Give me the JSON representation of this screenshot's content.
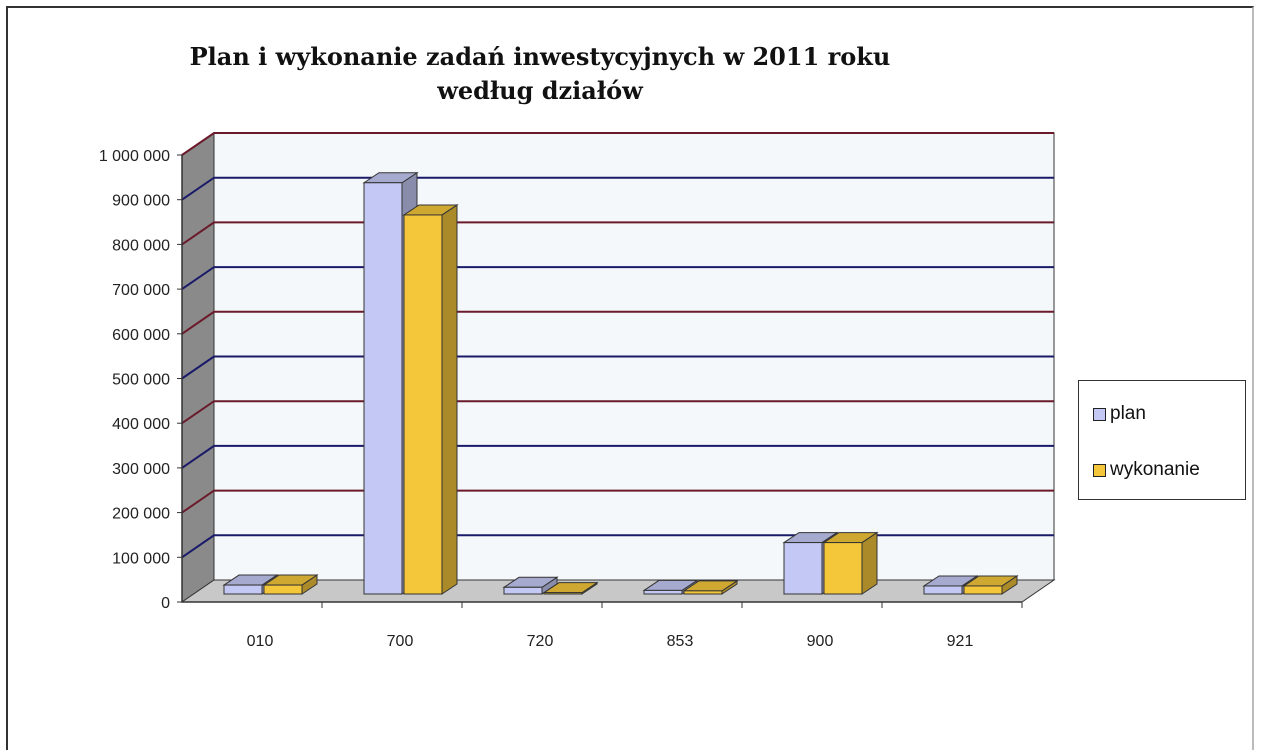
{
  "chart_data": {
    "type": "bar",
    "title": [
      "Plan i wykonanie zadań inwestycyjnych w 2011 roku",
      "według działów"
    ],
    "categories": [
      "010",
      "700",
      "720",
      "853",
      "900",
      "921"
    ],
    "series": [
      {
        "name": "plan",
        "values": [
          20000,
          920000,
          15000,
          8000,
          115000,
          18000
        ]
      },
      {
        "name": "wykonanie",
        "values": [
          20000,
          848000,
          3000,
          7000,
          115000,
          18000
        ]
      }
    ],
    "ylim": [
      0,
      1000000
    ],
    "yticks": [
      "0",
      "100 000",
      "200 000",
      "300 000",
      "400 000",
      "500 000",
      "600 000",
      "700 000",
      "800 000",
      "900 000",
      "1 000 000"
    ],
    "grid": true,
    "legend_position": "right",
    "colors": {
      "plan": "#c4c8f4",
      "wykonanie": "#f4c63a"
    }
  }
}
